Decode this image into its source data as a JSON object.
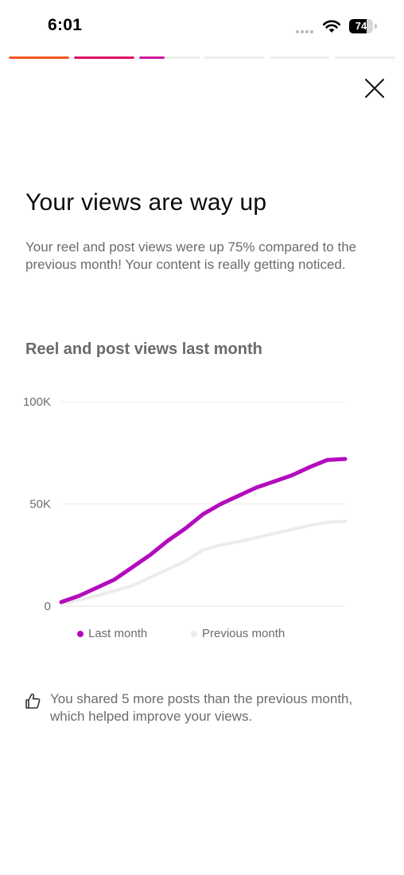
{
  "status_bar": {
    "time": "6:01",
    "battery_level": "74",
    "battery_fraction": 0.74
  },
  "progress": {
    "segments": [
      {
        "fill": 1.0,
        "color": "#f0561e"
      },
      {
        "fill": 1.0,
        "color": "#e0115f"
      },
      {
        "fill": 0.42,
        "color": "#d0169e"
      },
      {
        "fill": 0.0,
        "color": "#eeeeee"
      },
      {
        "fill": 0.0,
        "color": "#eeeeee"
      },
      {
        "fill": 0.0,
        "color": "#eeeeee"
      }
    ]
  },
  "close": {
    "icon": "close-icon"
  },
  "headline": "Your views are way up",
  "description": "Your reel and post views were up 75% compared to the previous month! Your content is really getting noticed.",
  "chart_title": "Reel and post views last month",
  "chart_data": {
    "type": "line",
    "title": "Reel and post views last month",
    "xlabel": "",
    "ylabel": "",
    "ylim": [
      0,
      100000
    ],
    "yticks": [
      0,
      50000,
      100000
    ],
    "ytick_labels": [
      "0",
      "50K",
      "100K"
    ],
    "grid": true,
    "legend": "bottom",
    "x": [
      1,
      2,
      3,
      4,
      5,
      6,
      7,
      8,
      9,
      10,
      11,
      12,
      13,
      14,
      15,
      16,
      17
    ],
    "series": [
      {
        "name": "Last month",
        "color": "#b40bbe",
        "values": [
          2000,
          5000,
          9000,
          13000,
          19000,
          25000,
          32000,
          38000,
          45000,
          50000,
          54000,
          58000,
          61000,
          64000,
          68000,
          71500,
          72000
        ]
      },
      {
        "name": "Previous month",
        "color": "#ececec",
        "values": [
          1000,
          3000,
          5000,
          7500,
          10000,
          14000,
          18000,
          22000,
          27500,
          30000,
          31500,
          33500,
          35500,
          37500,
          39500,
          41000,
          41500
        ]
      }
    ]
  },
  "tip": {
    "icon": "thumbs-up-icon",
    "text": "You shared 5 more posts than the previous month, which helped improve your views."
  }
}
